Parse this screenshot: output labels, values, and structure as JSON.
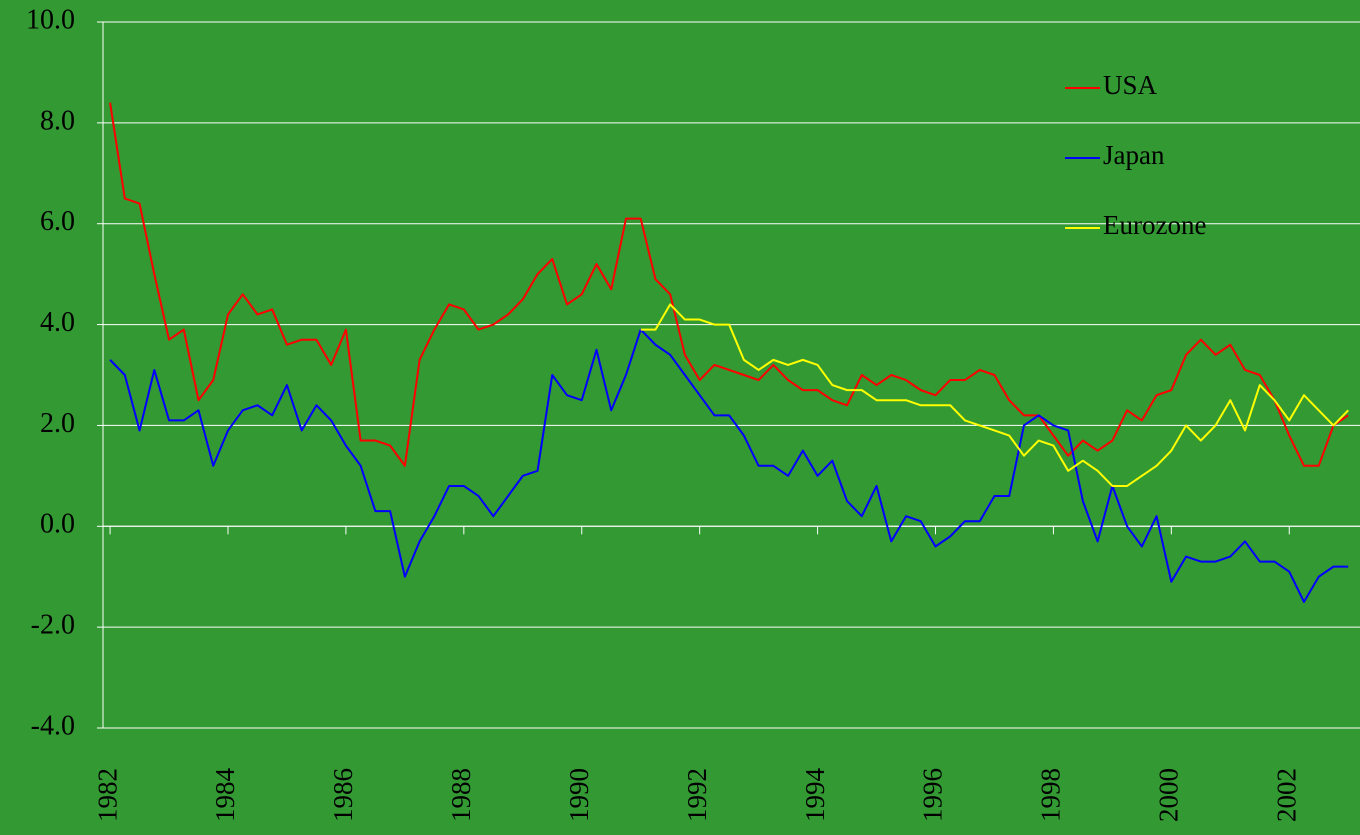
{
  "chart_data": {
    "type": "line",
    "x": [
      1982,
      1982.25,
      1982.5,
      1982.75,
      1983,
      1983.25,
      1983.5,
      1983.75,
      1984,
      1984.25,
      1984.5,
      1984.75,
      1985,
      1985.25,
      1985.5,
      1985.75,
      1986,
      1986.25,
      1986.5,
      1986.75,
      1987,
      1987.25,
      1987.5,
      1987.75,
      1988,
      1988.25,
      1988.5,
      1988.75,
      1989,
      1989.25,
      1989.5,
      1989.75,
      1990,
      1990.25,
      1990.5,
      1990.75,
      1991,
      1991.25,
      1991.5,
      1991.75,
      1992,
      1992.25,
      1992.5,
      1992.75,
      1993,
      1993.25,
      1993.5,
      1993.75,
      1994,
      1994.25,
      1994.5,
      1994.75,
      1995,
      1995.25,
      1995.5,
      1995.75,
      1996,
      1996.25,
      1996.5,
      1996.75,
      1997,
      1997.25,
      1997.5,
      1997.75,
      1998,
      1998.25,
      1998.5,
      1998.75,
      1999,
      1999.25,
      1999.5,
      1999.75,
      2000,
      2000.25,
      2000.5,
      2000.75,
      2001,
      2001.25,
      2001.5,
      2001.75,
      2002,
      2002.25,
      2002.5,
      2002.75,
      2003
    ],
    "series": [
      {
        "name": "USA",
        "color": "#ff0000",
        "values": [
          8.4,
          6.5,
          6.4,
          5.0,
          3.7,
          3.9,
          2.5,
          2.9,
          4.2,
          4.6,
          4.2,
          4.3,
          3.6,
          3.7,
          3.7,
          3.2,
          3.9,
          1.7,
          1.7,
          1.6,
          1.2,
          3.3,
          3.9,
          4.4,
          4.3,
          3.9,
          4.0,
          4.2,
          4.5,
          5.0,
          5.3,
          4.4,
          4.6,
          5.2,
          4.7,
          6.1,
          6.1,
          4.9,
          4.6,
          3.4,
          2.9,
          3.2,
          3.1,
          3.0,
          2.9,
          3.2,
          2.9,
          2.7,
          2.7,
          2.5,
          2.4,
          3.0,
          2.8,
          3.0,
          2.9,
          2.7,
          2.6,
          2.9,
          2.9,
          3.1,
          3.0,
          2.5,
          2.2,
          2.2,
          1.8,
          1.4,
          1.7,
          1.5,
          1.7,
          2.3,
          2.1,
          2.6,
          2.7,
          3.4,
          3.7,
          3.4,
          3.6,
          3.1,
          3.0,
          2.5,
          1.8,
          1.2,
          1.2,
          2.0,
          2.2
        ]
      },
      {
        "name": "Japan",
        "color": "#0000ff",
        "values": [
          3.3,
          3.0,
          1.9,
          3.1,
          2.1,
          2.1,
          2.3,
          1.2,
          1.9,
          2.3,
          2.4,
          2.2,
          2.8,
          1.9,
          2.4,
          2.1,
          1.6,
          1.2,
          0.3,
          0.3,
          -1.0,
          -0.3,
          0.2,
          0.8,
          0.8,
          0.6,
          0.2,
          0.6,
          1.0,
          1.1,
          3.0,
          2.6,
          2.5,
          3.5,
          2.3,
          3.0,
          3.9,
          3.6,
          3.4,
          3.0,
          2.6,
          2.2,
          2.2,
          1.8,
          1.2,
          1.2,
          1.0,
          1.5,
          1.0,
          1.3,
          0.5,
          0.2,
          0.8,
          -0.3,
          0.2,
          0.1,
          -0.4,
          -0.2,
          0.1,
          0.1,
          0.6,
          0.6,
          2.0,
          2.2,
          2.0,
          1.9,
          0.5,
          -0.3,
          0.8,
          0.0,
          -0.4,
          0.2,
          -1.1,
          -0.6,
          -0.7,
          -0.7,
          -0.6,
          -0.3,
          -0.7,
          -0.7,
          -0.9,
          -1.5,
          -1.0,
          -0.8,
          -0.8
        ]
      },
      {
        "name": "Eurozone",
        "color": "#ffff00",
        "values": [
          null,
          null,
          null,
          null,
          null,
          null,
          null,
          null,
          null,
          null,
          null,
          null,
          null,
          null,
          null,
          null,
          null,
          null,
          null,
          null,
          null,
          null,
          null,
          null,
          null,
          null,
          null,
          null,
          null,
          null,
          null,
          null,
          null,
          null,
          null,
          null,
          3.9,
          3.9,
          4.4,
          4.1,
          4.1,
          4.0,
          4.0,
          3.3,
          3.1,
          3.3,
          3.2,
          3.3,
          3.2,
          2.8,
          2.7,
          2.7,
          2.5,
          2.5,
          2.5,
          2.4,
          2.4,
          2.4,
          2.1,
          2.0,
          1.9,
          1.8,
          1.4,
          1.7,
          1.6,
          1.1,
          1.3,
          1.1,
          0.8,
          0.8,
          1.0,
          1.2,
          1.5,
          2.0,
          1.7,
          2.0,
          2.5,
          1.9,
          2.8,
          2.5,
          2.1,
          2.6,
          2.3,
          2.0,
          2.3
        ]
      }
    ],
    "xlim": [
      1981.88,
      2003.2
    ],
    "xticks": [
      1982,
      1984,
      1986,
      1988,
      1990,
      1992,
      1994,
      1996,
      1998,
      2000,
      2002
    ],
    "ylim": [
      -4,
      10
    ],
    "yticks": [
      {
        "value": -4,
        "label": "-4.0"
      },
      {
        "value": -2,
        "label": "-2.0"
      },
      {
        "value": 0,
        "label": "0.0"
      },
      {
        "value": 2,
        "label": "2.0"
      },
      {
        "value": 4,
        "label": "4.0"
      },
      {
        "value": 6,
        "label": "6.0"
      },
      {
        "value": 8,
        "label": "8.0"
      },
      {
        "value": 10,
        "label": "10.0"
      }
    ],
    "grid": true,
    "legend": "upper right"
  }
}
